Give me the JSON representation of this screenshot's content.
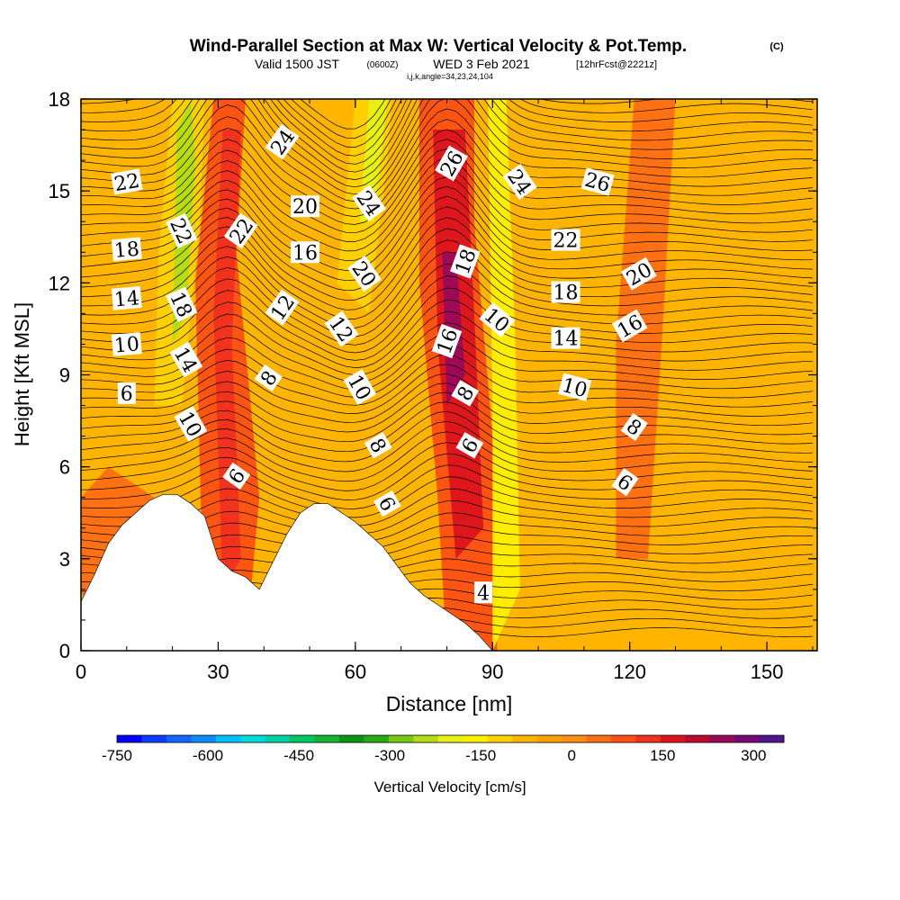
{
  "chart_data": {
    "type": "heatmap",
    "title": "Wind-Parallel Section at Max W: Vertical Velocity & Pot.Temp.",
    "title_mark": "(C)",
    "subtitle": {
      "prefix": "Valid 1500 JST",
      "utc": "(0600Z)",
      "date": "WED 3 Feb 2021",
      "forecast": "[12hrFcst@2221z]"
    },
    "info": "i,j,k,angle=34,23,24,104",
    "xlabel": "Distance [nm]",
    "ylabel": "Height [Kft MSL]",
    "xlim": [
      0,
      161
    ],
    "ylim": [
      0,
      18
    ],
    "xticks": [
      0,
      30,
      60,
      90,
      120,
      150
    ],
    "yticks": [
      0,
      3,
      6,
      9,
      12,
      15,
      18
    ],
    "colorbar": {
      "label": "Vertical Velocity [cm/s]",
      "tick_labels": [
        "-750",
        "-600",
        "-450",
        "-300",
        "-150",
        "0",
        "150",
        "300"
      ],
      "tick_values": [
        -750,
        -600,
        -450,
        -300,
        -150,
        0,
        150,
        300
      ],
      "min": -750,
      "max": 350,
      "step": 50,
      "colors": [
        "#0000ff",
        "#0e3cff",
        "#1464ff",
        "#0a8cff",
        "#00c0ff",
        "#00dcdc",
        "#00d2a0",
        "#00c864",
        "#14b432",
        "#0a9614",
        "#28aa14",
        "#78c814",
        "#b4dc14",
        "#e6f014",
        "#fff000",
        "#ffd200",
        "#ffb400",
        "#ffa000",
        "#ff8c14",
        "#ff6e14",
        "#ff5014",
        "#f0321e",
        "#dc141e",
        "#be0a32",
        "#9b0a5a",
        "#780a78",
        "#50148c"
      ]
    },
    "terrain_profile": {
      "x": [
        0,
        3,
        6,
        9,
        12,
        15,
        18,
        21,
        24,
        27,
        30,
        33,
        36,
        39,
        42,
        45,
        48,
        51,
        54,
        57,
        60,
        63,
        66,
        69,
        72,
        75,
        78,
        81,
        84,
        87,
        90
      ],
      "height": [
        1.6,
        2.5,
        3.5,
        4.1,
        4.5,
        4.9,
        5.1,
        5.1,
        4.8,
        4.4,
        3.0,
        2.6,
        2.4,
        2.0,
        2.9,
        3.8,
        4.5,
        4.8,
        4.8,
        4.5,
        4.2,
        3.8,
        3.4,
        2.8,
        2.2,
        1.8,
        1.5,
        1.2,
        0.9,
        0.5,
        0
      ]
    },
    "theta_contour_labels": [
      {
        "text": "22",
        "x": 10,
        "y": 15.3,
        "angle": -10
      },
      {
        "text": "18",
        "x": 10,
        "y": 13.1,
        "angle": -5
      },
      {
        "text": "14",
        "x": 10,
        "y": 11.5,
        "angle": -5
      },
      {
        "text": "10",
        "x": 10,
        "y": 10.0,
        "angle": -5
      },
      {
        "text": "6",
        "x": 10,
        "y": 8.4,
        "angle": 0
      },
      {
        "text": "22",
        "x": 22,
        "y": 13.7,
        "angle": 65
      },
      {
        "text": "18",
        "x": 22,
        "y": 11.3,
        "angle": 65
      },
      {
        "text": "14",
        "x": 23,
        "y": 9.5,
        "angle": 60
      },
      {
        "text": "10",
        "x": 24,
        "y": 7.4,
        "angle": 60
      },
      {
        "text": "24",
        "x": 44,
        "y": 16.6,
        "angle": -55
      },
      {
        "text": "22",
        "x": 35,
        "y": 13.7,
        "angle": -55
      },
      {
        "text": "20",
        "x": 49,
        "y": 14.5,
        "angle": 0
      },
      {
        "text": "16",
        "x": 49,
        "y": 13.0,
        "angle": 0
      },
      {
        "text": "12",
        "x": 44,
        "y": 11.2,
        "angle": -55
      },
      {
        "text": "8",
        "x": 41,
        "y": 8.9,
        "angle": -55
      },
      {
        "text": "6",
        "x": 34,
        "y": 5.7,
        "angle": -55
      },
      {
        "text": "24",
        "x": 63,
        "y": 14.6,
        "angle": 55
      },
      {
        "text": "20",
        "x": 62,
        "y": 12.3,
        "angle": 55
      },
      {
        "text": "12",
        "x": 57,
        "y": 10.5,
        "angle": 55
      },
      {
        "text": "10",
        "x": 61,
        "y": 8.6,
        "angle": 60
      },
      {
        "text": "8",
        "x": 65,
        "y": 6.7,
        "angle": 60
      },
      {
        "text": "6",
        "x": 67,
        "y": 4.8,
        "angle": 60
      },
      {
        "text": "26",
        "x": 81,
        "y": 15.9,
        "angle": -60
      },
      {
        "text": "18",
        "x": 84,
        "y": 12.7,
        "angle": -70
      },
      {
        "text": "16",
        "x": 80,
        "y": 10.1,
        "angle": -70
      },
      {
        "text": "8",
        "x": 84,
        "y": 8.4,
        "angle": -60
      },
      {
        "text": "6",
        "x": 85,
        "y": 6.7,
        "angle": -60
      },
      {
        "text": "4",
        "x": 88,
        "y": 1.9,
        "angle": 0
      },
      {
        "text": "24",
        "x": 96,
        "y": 15.3,
        "angle": 55
      },
      {
        "text": "10",
        "x": 91,
        "y": 10.8,
        "angle": 40
      },
      {
        "text": "26",
        "x": 113,
        "y": 15.3,
        "angle": 15
      },
      {
        "text": "22",
        "x": 106,
        "y": 13.4,
        "angle": 0
      },
      {
        "text": "18",
        "x": 106,
        "y": 11.7,
        "angle": 0
      },
      {
        "text": "14",
        "x": 106,
        "y": 10.2,
        "angle": 0
      },
      {
        "text": "10",
        "x": 108,
        "y": 8.6,
        "angle": 15
      },
      {
        "text": "20",
        "x": 122,
        "y": 12.3,
        "angle": -30
      },
      {
        "text": "16",
        "x": 120,
        "y": 10.6,
        "angle": -30
      },
      {
        "text": "8",
        "x": 121,
        "y": 7.3,
        "angle": 35
      },
      {
        "text": "6",
        "x": 119,
        "y": 5.5,
        "angle": 35
      }
    ]
  }
}
